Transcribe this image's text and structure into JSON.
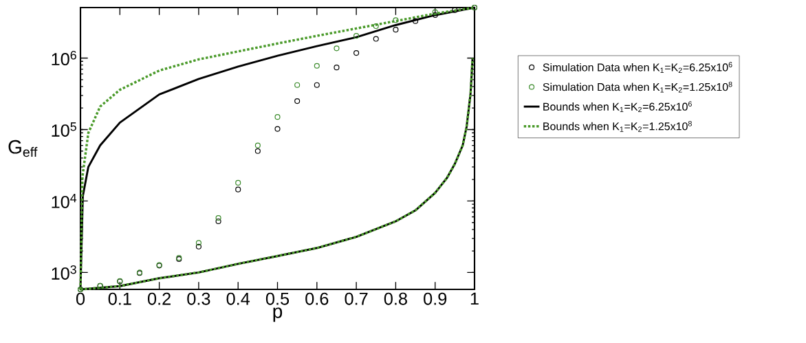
{
  "chart_data": {
    "type": "line",
    "xlabel": "p",
    "ylabel": "G$_{eff}$",
    "log": "y",
    "xlim": [
      0,
      1
    ],
    "ylim": [
      580,
      5100000
    ],
    "xticks": [
      0,
      0.1,
      0.2,
      0.3,
      0.4,
      0.5,
      0.6,
      0.7,
      0.8,
      0.9,
      1
    ],
    "yticks": [
      {
        "value": 1000,
        "label": "10$^{3}$"
      },
      {
        "value": 10000,
        "label": "10$^{4}$"
      },
      {
        "value": 100000,
        "label": "10$^{5}$"
      },
      {
        "value": 1000000,
        "label": "10$^{6}$"
      }
    ],
    "grid": false,
    "legend": "right",
    "series": [
      {
        "name": "Simulation Data when K$_{1}$=K$_{2}$=6.25x10$^{6}$",
        "type": "scatter",
        "marker": "circle",
        "color": "#000000",
        "x": [
          0,
          0.05,
          0.1,
          0.15,
          0.2,
          0.25,
          0.3,
          0.35,
          0.4,
          0.45,
          0.5,
          0.55,
          0.6,
          0.65,
          0.7,
          0.75,
          0.8,
          0.85,
          0.9,
          0.95,
          1
        ],
        "values": [
          580,
          650,
          750,
          980,
          1250,
          1540,
          2300,
          5200,
          14500,
          50000,
          102000,
          250000,
          420000,
          740000,
          1180000,
          1860000,
          2500000,
          3300000,
          4000000,
          4700000,
          5100000
        ]
      },
      {
        "name": "Simulation Data when K$_{1}$=K$_{2}$=1.25x10$^{8}$",
        "type": "scatter",
        "marker": "circle",
        "color": "#3a8a2a",
        "x": [
          0,
          0.05,
          0.1,
          0.15,
          0.2,
          0.25,
          0.3,
          0.35,
          0.4,
          0.45,
          0.5,
          0.55,
          0.6,
          0.65,
          0.7,
          0.75,
          0.8,
          0.9,
          1
        ],
        "values": [
          580,
          650,
          760,
          1000,
          1270,
          1600,
          2600,
          5800,
          18000,
          60000,
          150000,
          420000,
          780000,
          1370000,
          2050000,
          2800000,
          3400000,
          4400000,
          5100000
        ]
      },
      {
        "name": "Bounds when K$_{1}$=K$_{2}$=6.25x10$^{6}$",
        "line_style": "solid",
        "marker": "none",
        "color": "#000000",
        "x": [
          0,
          0.006,
          0.02,
          0.05,
          0.1,
          0.2,
          0.3,
          0.4,
          0.5,
          0.6,
          0.7,
          0.8,
          0.9,
          1
        ],
        "values": [
          580,
          11700,
          30000,
          60000,
          125000,
          310000,
          510000,
          760000,
          1080000,
          1470000,
          1960000,
          2900000,
          4000000,
          5100000
        ]
      },
      {
        "name": "Bounds when K$_{1}$=K$_{2}$=1.25x10$^{8}$",
        "line_style": "dotted",
        "marker": "none",
        "color": "#4a9a2a",
        "x": [
          0,
          0.005,
          0.02,
          0.05,
          0.1,
          0.2,
          0.3,
          0.4,
          0.5,
          0.6,
          0.7,
          0.8,
          0.9,
          1
        ],
        "values": [
          580,
          22000,
          90000,
          210000,
          360000,
          670000,
          960000,
          1240000,
          1600000,
          2050000,
          2600000,
          3300000,
          4200000,
          5100000
        ]
      },
      {
        "line_style": "solid",
        "marker": "none",
        "color": "#000000",
        "x": [
          0,
          0.1,
          0.2,
          0.3,
          0.4,
          0.5,
          0.6,
          0.7,
          0.8,
          0.85,
          0.9,
          0.93,
          0.95,
          0.97,
          0.98,
          0.99,
          0.995
        ],
        "values": [
          580,
          645,
          830,
          1000,
          1320,
          1700,
          2200,
          3150,
          5200,
          7400,
          13000,
          21000,
          33000,
          60000,
          110000,
          320000,
          1000000
        ]
      },
      {
        "line_style": "dotted",
        "marker": "none",
        "color": "#4a9a2a",
        "x": [
          0,
          0.1,
          0.2,
          0.3,
          0.4,
          0.5,
          0.6,
          0.7,
          0.8,
          0.85,
          0.9,
          0.93,
          0.95,
          0.97,
          0.98,
          0.99,
          0.995
        ],
        "values": [
          580,
          645,
          830,
          1000,
          1320,
          1700,
          2200,
          3150,
          5200,
          7400,
          13000,
          21000,
          33000,
          60000,
          110000,
          320000,
          1000000
        ]
      }
    ]
  }
}
